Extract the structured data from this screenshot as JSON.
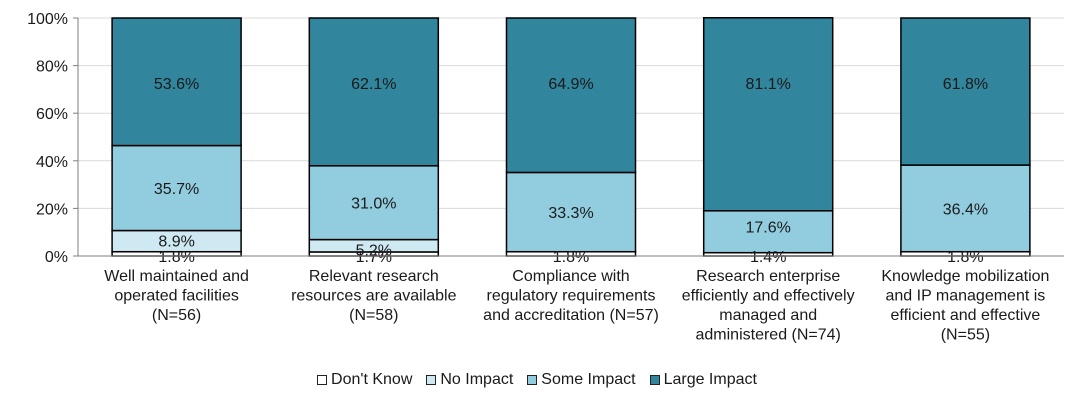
{
  "chart_data": {
    "type": "bar",
    "stacked": true,
    "percent": true,
    "categories": [
      [
        "Well maintained and",
        "operated facilities",
        "(N=56)"
      ],
      [
        "Relevant research",
        "resources are available",
        "(N=58)"
      ],
      [
        "Compliance with",
        "regulatory requirements",
        "and accreditation (N=57)"
      ],
      [
        "Research enterprise",
        "efficiently and effectively",
        "managed and",
        "administered (N=74)"
      ],
      [
        "Knowledge mobilization",
        "and IP management is",
        "efficient and effective",
        "(N=55)"
      ]
    ],
    "series": [
      {
        "name": "Don't Know",
        "color": "#ffffff",
        "values": [
          1.8,
          1.7,
          1.8,
          1.4,
          1.8
        ]
      },
      {
        "name": "No Impact",
        "color": "#cfe9f3",
        "values": [
          8.9,
          5.2,
          0,
          0,
          0
        ]
      },
      {
        "name": "Some Impact",
        "color": "#92cddf",
        "values": [
          35.7,
          31.0,
          33.3,
          17.6,
          36.4
        ]
      },
      {
        "name": "Large Impact",
        "color": "#31859c",
        "values": [
          53.6,
          62.1,
          64.9,
          81.1,
          61.8
        ]
      }
    ],
    "data_labels": [
      [
        {
          "series": 0,
          "text": "1.8%"
        },
        {
          "series": 1,
          "text": "8.9%"
        },
        {
          "series": 2,
          "text": "35.7%"
        },
        {
          "series": 3,
          "text": "53.6%"
        }
      ],
      [
        {
          "series": 0,
          "text": "1.7%"
        },
        {
          "series": 1,
          "text": "5.2%"
        },
        {
          "series": 2,
          "text": "31.0%"
        },
        {
          "series": 3,
          "text": "62.1%"
        }
      ],
      [
        {
          "series": 0,
          "text": "1.8%"
        },
        {
          "series": 2,
          "text": "33.3%"
        },
        {
          "series": 3,
          "text": "64.9%"
        }
      ],
      [
        {
          "series": 0,
          "text": "1.4%"
        },
        {
          "series": 2,
          "text": "17.6%"
        },
        {
          "series": 3,
          "text": "81.1%"
        }
      ],
      [
        {
          "series": 0,
          "text": "1.8%"
        },
        {
          "series": 2,
          "text": "36.4%"
        },
        {
          "series": 3,
          "text": "61.8%"
        }
      ]
    ],
    "y_ticks": [
      "0%",
      "20%",
      "40%",
      "60%",
      "80%",
      "100%"
    ],
    "ylim": [
      0,
      100
    ],
    "grid": true,
    "legend_position": "bottom",
    "legend": [
      "Don't Know",
      "No Impact",
      "Some Impact",
      "Large Impact"
    ]
  }
}
